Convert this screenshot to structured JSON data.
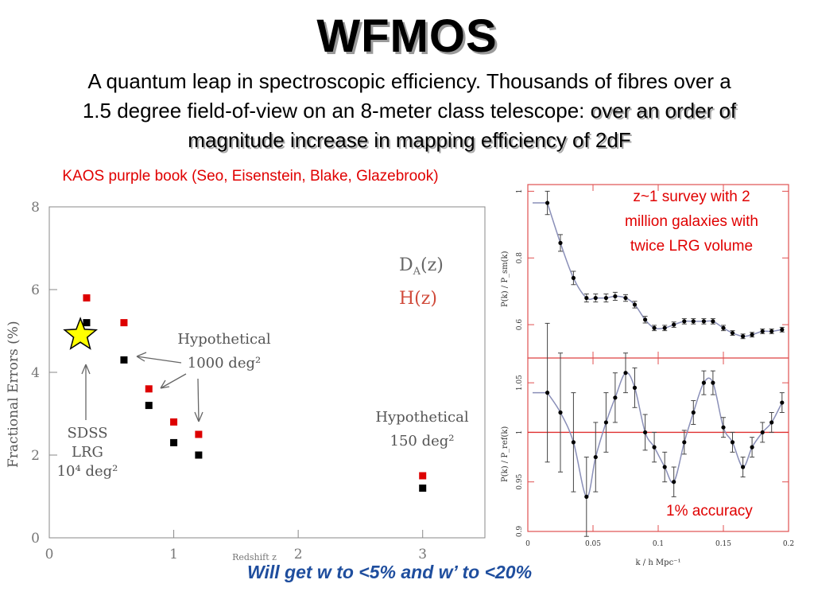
{
  "slide": {
    "title": "WFMOS",
    "intro_plain": "A quantum leap in spectroscopic efficiency. Thousands of fibres over a 1.5 degree field-of-view on an 8-meter class telescope: ",
    "intro_highlight": "over an order of magnitude increase in mapping efficiency of 2dF",
    "caption_left": "KAOS purple book (Seo, Eisenstein, Blake, Glazebrook)",
    "caption_right": "z~1 survey with 2 million galaxies with twice LRG volume",
    "accuracy_label": "1% accuracy",
    "bottom_line": "Will get w to <5% and w’ to <20%"
  },
  "left_plot": {
    "legend_da": "D",
    "legend_da_sub": "A",
    "legend_da_tail": "(z)",
    "legend_h": "H(z)",
    "annot_hyp1000_line1": "Hypothetical",
    "annot_hyp1000_line2": "1000 deg²",
    "annot_hyp150_line1": "Hypothetical",
    "annot_hyp150_line2": "150 deg²",
    "annot_sdss_line1": "SDSS",
    "annot_sdss_line2": "LRG",
    "annot_sdss_line3": "10⁴ deg²",
    "star_color": "#ffff00",
    "red": "#dd0000"
  },
  "right_plot": {
    "upper_ylabel": "P(k) / P_sm(k)",
    "lower_ylabel": "P(k) / P_ref(k)",
    "xlabel": "k / h Mpc⁻¹",
    "frame_color": "#e05050"
  },
  "chart_data": [
    {
      "type": "scatter",
      "title": "",
      "xlabel": "Redshift z",
      "ylabel": "Fractional Errors (%)",
      "xlim": [
        0,
        3.5
      ],
      "ylim": [
        0,
        8
      ],
      "x_ticks": [
        "0",
        "1",
        "2",
        "3"
      ],
      "y_ticks": [
        "0",
        "2",
        "4",
        "6",
        "8"
      ],
      "grid": false,
      "series": [
        {
          "name": "H(z)",
          "color": "#dd0000",
          "points": [
            [
              0.3,
              5.8
            ],
            [
              0.6,
              5.2
            ],
            [
              0.8,
              3.6
            ],
            [
              1.0,
              2.8
            ],
            [
              1.2,
              2.5
            ],
            [
              3.0,
              1.5
            ]
          ]
        },
        {
          "name": "DA(z)",
          "color": "#000000",
          "points": [
            [
              0.3,
              5.2
            ],
            [
              0.6,
              4.3
            ],
            [
              0.8,
              3.2
            ],
            [
              1.0,
              2.3
            ],
            [
              1.2,
              2.0
            ],
            [
              3.0,
              1.2
            ]
          ]
        }
      ],
      "star_marker": [
        0.25,
        4.9
      ]
    },
    {
      "type": "line",
      "title": "",
      "xlabel": "k / h Mpc⁻¹",
      "ylabel": "P(k) / P_sm(k)",
      "xlim": [
        0,
        0.2
      ],
      "ylim": [
        0.5,
        1.02
      ],
      "x_ticks": [
        "0",
        "0.05",
        "0.1",
        "0.15",
        "0.2"
      ],
      "y_ticks": [
        "0.6",
        "0.8",
        "1"
      ],
      "points": [
        [
          0.015,
          0.965,
          0.035
        ],
        [
          0.025,
          0.845,
          0.025
        ],
        [
          0.035,
          0.74,
          0.02
        ],
        [
          0.045,
          0.68,
          0.012
        ],
        [
          0.052,
          0.68,
          0.012
        ],
        [
          0.06,
          0.68,
          0.012
        ],
        [
          0.067,
          0.685,
          0.012
        ],
        [
          0.075,
          0.68,
          0.01
        ],
        [
          0.082,
          0.66,
          0.01
        ],
        [
          0.09,
          0.615,
          0.01
        ],
        [
          0.097,
          0.59,
          0.008
        ],
        [
          0.105,
          0.59,
          0.008
        ],
        [
          0.112,
          0.6,
          0.008
        ],
        [
          0.12,
          0.61,
          0.008
        ],
        [
          0.127,
          0.61,
          0.008
        ],
        [
          0.135,
          0.61,
          0.008
        ],
        [
          0.142,
          0.61,
          0.008
        ],
        [
          0.15,
          0.59,
          0.008
        ],
        [
          0.157,
          0.575,
          0.007
        ],
        [
          0.165,
          0.565,
          0.007
        ],
        [
          0.172,
          0.57,
          0.007
        ],
        [
          0.18,
          0.58,
          0.007
        ],
        [
          0.187,
          0.58,
          0.007
        ],
        [
          0.195,
          0.585,
          0.007
        ]
      ]
    },
    {
      "type": "line",
      "title": "",
      "xlabel": "k / h Mpc⁻¹",
      "ylabel": "P(k) / P_ref(k)",
      "xlim": [
        0,
        0.2
      ],
      "ylim": [
        0.9,
        1.075
      ],
      "x_ticks": [
        "0",
        "0.05",
        "0.1",
        "0.15",
        "0.2"
      ],
      "y_ticks": [
        "0.9",
        "0.95",
        "1",
        "1.05"
      ],
      "reference_line": 1.0,
      "points": [
        [
          0.015,
          1.04,
          0.07
        ],
        [
          0.025,
          1.02,
          0.06
        ],
        [
          0.035,
          0.99,
          0.05
        ],
        [
          0.045,
          0.935,
          0.04
        ],
        [
          0.052,
          0.975,
          0.035
        ],
        [
          0.06,
          1.01,
          0.03
        ],
        [
          0.067,
          1.035,
          0.025
        ],
        [
          0.075,
          1.06,
          0.02
        ],
        [
          0.082,
          1.045,
          0.02
        ],
        [
          0.09,
          1.0,
          0.018
        ],
        [
          0.097,
          0.985,
          0.015
        ],
        [
          0.105,
          0.965,
          0.015
        ],
        [
          0.112,
          0.95,
          0.015
        ],
        [
          0.12,
          0.99,
          0.012
        ],
        [
          0.127,
          1.02,
          0.012
        ],
        [
          0.135,
          1.05,
          0.012
        ],
        [
          0.142,
          1.05,
          0.012
        ],
        [
          0.15,
          1.005,
          0.01
        ],
        [
          0.157,
          0.99,
          0.01
        ],
        [
          0.165,
          0.965,
          0.01
        ],
        [
          0.172,
          0.985,
          0.01
        ],
        [
          0.18,
          1.0,
          0.01
        ],
        [
          0.187,
          1.01,
          0.01
        ],
        [
          0.195,
          1.03,
          0.01
        ]
      ]
    }
  ]
}
